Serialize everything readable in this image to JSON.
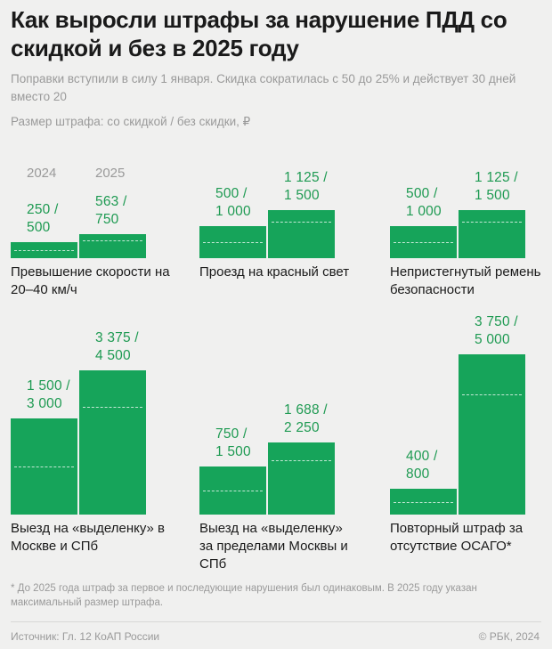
{
  "header": {
    "title": "Как выросли штрафы за нарушение ПДД со скидкой и без в 2025 году",
    "subtitle": "Поправки вступили в силу 1 января. Скидка сократилась с 50 до 25% и действует 30 дней вместо 20",
    "legend": "Размер штрафа: со скидкой / без скидки, ₽"
  },
  "years": [
    "2024",
    "2025"
  ],
  "chart_data": {
    "type": "bar",
    "series": [
      {
        "name": "2024",
        "discounted": [
          250,
          500,
          500,
          1500,
          750,
          400
        ],
        "full": [
          500,
          1000,
          1000,
          3000,
          1500,
          800
        ]
      },
      {
        "name": "2025",
        "discounted": [
          563,
          1125,
          1125,
          3375,
          1688,
          3750
        ],
        "full": [
          750,
          1500,
          1500,
          4500,
          2250,
          5000
        ]
      }
    ],
    "categories": [
      "Превышение скорости на 20–40 км/ч",
      "Проезд на красный свет",
      "Непристегнутый ремень безопасности",
      "Выезд на «выделенку» в Москве и СПб",
      "Выезд на «выделенку» за пределами Москвы и СПб",
      "Повторный штраф за отсутствие ОСАГО*"
    ],
    "value_labels": [
      [
        "250 /\n500",
        "563 /\n750"
      ],
      [
        "500 /\n1 000",
        "1 125 /\n1 500"
      ],
      [
        "500 /\n1 000",
        "1 125 /\n1 500"
      ],
      [
        "1 500 /\n3 000",
        "3 375 /\n4 500"
      ],
      [
        "750 /\n1 500",
        "1 688 /\n2 250"
      ],
      [
        "400 /\n800",
        "3 750 /\n5 000"
      ]
    ],
    "bar_color": "#16a45a",
    "value_color": "#1e9a52"
  },
  "footer": {
    "note": "* До 2025 года штраф за первое и последующие нарушения был одинаковым. В 2025 году указан максимальный размер штрафа.",
    "source": "Источник: Гл. 12 КоАП России",
    "copyright": "© РБК, 2024"
  }
}
